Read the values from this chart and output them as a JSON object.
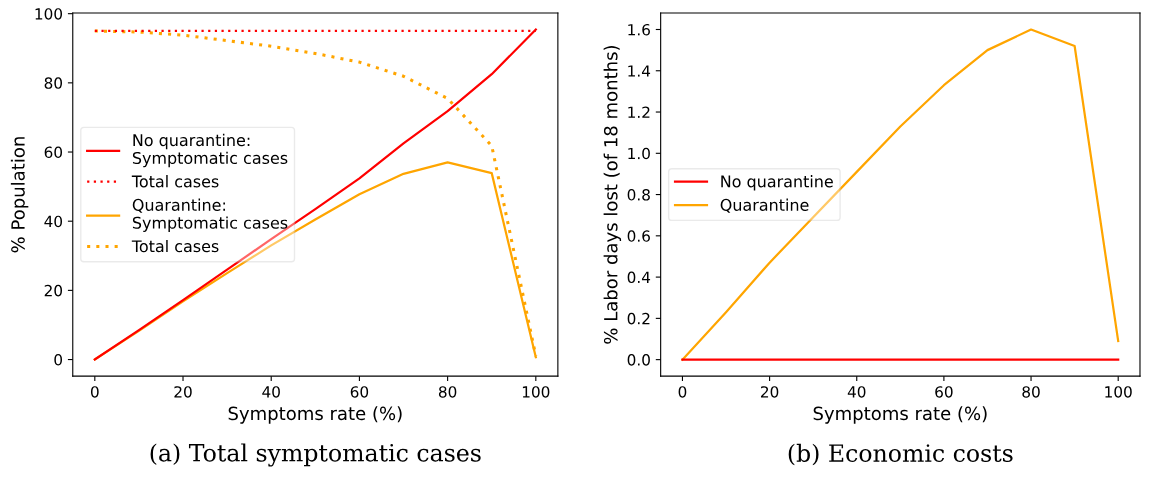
{
  "chart_data": [
    {
      "type": "line",
      "xlabel": "Symptoms rate (%)",
      "ylabel": "% Population",
      "annotations": [
        "(a) Total symptomatic cases"
      ],
      "x": [
        0,
        10,
        20,
        30,
        40,
        50,
        60,
        70,
        80,
        90,
        100
      ],
      "xlim": [
        -5,
        105
      ],
      "xticks": [
        0,
        20,
        40,
        60,
        80,
        100
      ],
      "ylim": [
        -4.8,
        100.2
      ],
      "yticks": [
        0,
        20,
        40,
        60,
        80,
        100
      ],
      "grid": false,
      "legend": "left",
      "series": [
        {
          "name": "No quarantine:\nSymptomatic cases",
          "color": "#ff0000",
          "line_style": "solid",
          "values": [
            0,
            8.5,
            17.2,
            26,
            34.8,
            43.5,
            52.4,
            62.5,
            71.8,
            82.5,
            95.4
          ]
        },
        {
          "name": "Total cases",
          "color": "#ff0000",
          "line_style": "dotted",
          "values": [
            95,
            95,
            95,
            95,
            95,
            95,
            95,
            95,
            95,
            95,
            95
          ]
        },
        {
          "name": "Quarantine:\nSymptomatic cases",
          "color": "#ffa500",
          "line_style": "solid",
          "values": [
            0,
            8.3,
            16.8,
            25,
            33,
            40.5,
            47.8,
            53.7,
            57,
            53.9,
            0.7
          ]
        },
        {
          "name": "Total cases",
          "color": "#ffa500",
          "line_style": "dotted",
          "values": [
            95,
            94.7,
            93.8,
            92.2,
            90.6,
            88.5,
            86,
            81.9,
            75.5,
            61.8,
            1
          ]
        }
      ]
    },
    {
      "type": "line",
      "xlabel": "Symptoms rate (%)",
      "ylabel": "% Labor days lost (of 18 months)",
      "annotations": [
        "(b) Economic costs"
      ],
      "x": [
        0,
        10,
        20,
        30,
        40,
        50,
        60,
        70,
        80,
        90,
        100
      ],
      "xlim": [
        -5,
        105
      ],
      "xticks": [
        0,
        20,
        40,
        60,
        80,
        100
      ],
      "ylim": [
        -0.08,
        1.68
      ],
      "yticks": [
        {
          "value": 0,
          "label": "0.0"
        },
        0.2,
        0.4,
        0.6,
        0.8,
        {
          "value": 1,
          "label": "1.0"
        },
        1.2,
        1.4,
        1.6
      ],
      "grid": false,
      "legend": "left",
      "series": [
        {
          "name": "No quarantine",
          "color": "#ff0000",
          "line_style": "solid",
          "values": [
            0,
            0,
            0,
            0,
            0,
            0,
            0,
            0,
            0,
            0,
            0
          ]
        },
        {
          "name": "Quarantine",
          "color": "#ffa500",
          "line_style": "solid",
          "values": [
            0,
            0.23,
            0.47,
            0.69,
            0.91,
            1.13,
            1.33,
            1.5,
            1.6,
            1.52,
            0.09
          ]
        }
      ]
    }
  ]
}
